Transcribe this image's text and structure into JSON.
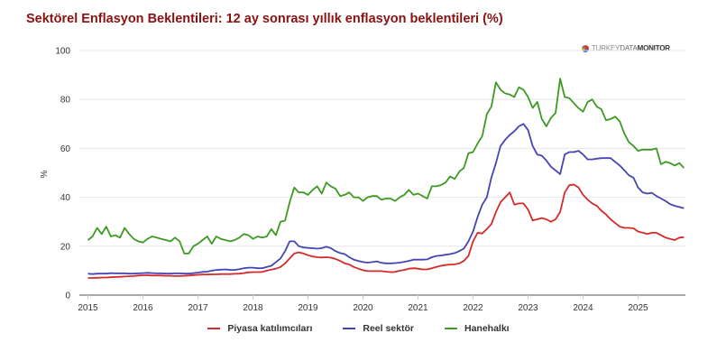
{
  "title": "Sektörel Enflasyon Beklentileri: 12 ay sonrası yıllık enflasyon beklentileri (%)",
  "logo": {
    "part1": "TURKEY",
    "part2": "DATA",
    "part3": "MONITOR"
  },
  "chart_data": {
    "type": "line",
    "title": "Sektörel Enflasyon Beklentileri: 12 ay sonrası yıllık enflasyon beklentileri (%)",
    "xlabel": "",
    "ylabel": "%",
    "ylim": [
      0,
      100
    ],
    "yticks": [
      "0",
      "20",
      "40",
      "60",
      "80",
      "100"
    ],
    "xticks": [
      "2015",
      "2016",
      "2017",
      "2018",
      "2019",
      "2020",
      "2021",
      "2022",
      "2023",
      "2024",
      "2025"
    ],
    "x_start": "2015-01",
    "frequency": "monthly",
    "grid": true,
    "legend_placement": "bottom",
    "series": [
      {
        "name": "Piyasa katılımcıları",
        "color": "#d42a2a",
        "values": [
          7,
          7,
          7.1,
          7.2,
          7.2,
          7.3,
          7.4,
          7.5,
          7.6,
          7.7,
          7.8,
          8,
          8.1,
          8.1,
          8,
          8,
          8,
          7.9,
          7.9,
          7.8,
          7.8,
          7.9,
          8,
          8.2,
          8.3,
          8.4,
          8.4,
          8.5,
          8.5,
          8.6,
          8.6,
          8.6,
          8.7,
          8.8,
          9,
          9.3,
          9.4,
          9.4,
          9.5,
          10,
          10.4,
          10.8,
          11.5,
          13,
          15,
          17,
          17.5,
          17,
          16.3,
          15.8,
          15.5,
          15.4,
          15.5,
          15.3,
          14.8,
          14,
          13,
          12.5,
          11.5,
          10.8,
          10.2,
          9.8,
          9.8,
          9.8,
          9.8,
          9.6,
          9.4,
          9.5,
          10,
          10.3,
          10.8,
          11,
          10.8,
          10.5,
          10.5,
          11,
          11.5,
          12,
          12.3,
          12.5,
          12.6,
          13,
          14,
          16,
          22,
          25.5,
          25.2,
          27,
          29,
          34,
          38,
          40,
          42,
          37,
          37.5,
          37.5,
          35,
          30.5,
          31,
          31.5,
          31,
          30,
          31,
          34,
          42,
          45,
          45.2,
          44,
          41,
          39,
          37.5,
          36.5,
          34.5,
          33,
          31,
          29.5,
          28,
          27.5,
          27.5,
          27.3,
          26,
          25.5,
          25,
          25.5,
          25.5,
          24.5,
          23.5,
          23,
          22.5,
          23.5,
          23.7
        ]
      },
      {
        "name": "Reel sektör",
        "color": "#4444b4",
        "values": [
          8.8,
          8.6,
          8.8,
          8.8,
          8.8,
          9,
          8.9,
          8.9,
          8.9,
          8.8,
          8.8,
          8.9,
          9,
          9.1,
          9,
          8.9,
          8.9,
          8.8,
          8.8,
          8.9,
          8.9,
          8.8,
          8.8,
          9,
          9.2,
          9.5,
          9.6,
          10,
          10.3,
          10.4,
          10.5,
          10.3,
          10.3,
          10.6,
          11,
          11.2,
          11.2,
          11,
          11,
          11.5,
          12,
          13.5,
          15,
          18,
          22,
          22,
          20,
          19.5,
          19.3,
          19.2,
          19,
          19.2,
          19.8,
          19.2,
          18,
          17.2,
          16.8,
          15.5,
          14.5,
          14,
          13.5,
          13.3,
          13.5,
          13.8,
          13.2,
          13,
          13,
          13.1,
          13.3,
          13.6,
          14,
          14.5,
          14.5,
          14.5,
          14.6,
          15.5,
          16,
          16.2,
          16.5,
          16.8,
          17.2,
          18,
          19,
          22,
          26,
          32,
          37,
          40,
          48,
          54,
          61,
          63.5,
          65.5,
          67,
          69,
          70,
          67.5,
          61,
          57.5,
          57,
          55,
          52.5,
          51,
          49.5,
          57.5,
          58.5,
          58.5,
          59,
          57.5,
          55.5,
          55.5,
          55.8,
          56,
          56,
          56,
          54.5,
          53,
          51,
          49,
          48,
          44,
          42,
          41.5,
          41.8,
          40.5,
          39.5,
          38.5,
          37.2,
          36.5,
          36,
          35.5
        ]
      },
      {
        "name": "Hanehalkı",
        "color": "#3c9a22",
        "values": [
          22.5,
          24,
          27.5,
          25,
          28,
          24,
          24.5,
          23.5,
          27.5,
          25,
          23,
          22,
          21.5,
          23,
          24,
          23.5,
          23,
          22.5,
          22,
          23.5,
          22,
          17,
          17,
          20,
          21,
          22.5,
          24,
          21,
          24,
          23,
          22.5,
          22,
          22.5,
          23.5,
          25,
          24.5,
          23,
          24,
          23.5,
          24,
          27,
          24.5,
          30,
          30.5,
          38,
          44,
          42,
          42,
          41,
          43,
          44.5,
          41.5,
          46,
          44.5,
          43.5,
          40.5,
          41,
          42,
          40,
          40,
          38.5,
          40,
          40.5,
          40.5,
          39,
          39.5,
          39.5,
          38.5,
          40,
          41,
          43,
          41,
          41.5,
          40.5,
          39.5,
          44.5,
          44.5,
          45,
          46,
          48.5,
          47.5,
          50.5,
          52,
          58,
          58.5,
          62,
          65,
          74,
          77,
          87,
          84,
          82.5,
          82,
          81,
          85,
          84,
          81,
          76.5,
          79,
          72,
          69,
          72.5,
          74.5,
          88.5,
          81,
          80.5,
          78.5,
          76.5,
          75,
          79,
          80,
          77,
          76,
          71.5,
          72,
          73,
          71,
          66,
          62.5,
          61,
          59,
          59.5,
          59.5,
          59.5,
          60,
          53.5,
          54.5,
          54,
          53,
          54,
          52
        ]
      }
    ]
  }
}
